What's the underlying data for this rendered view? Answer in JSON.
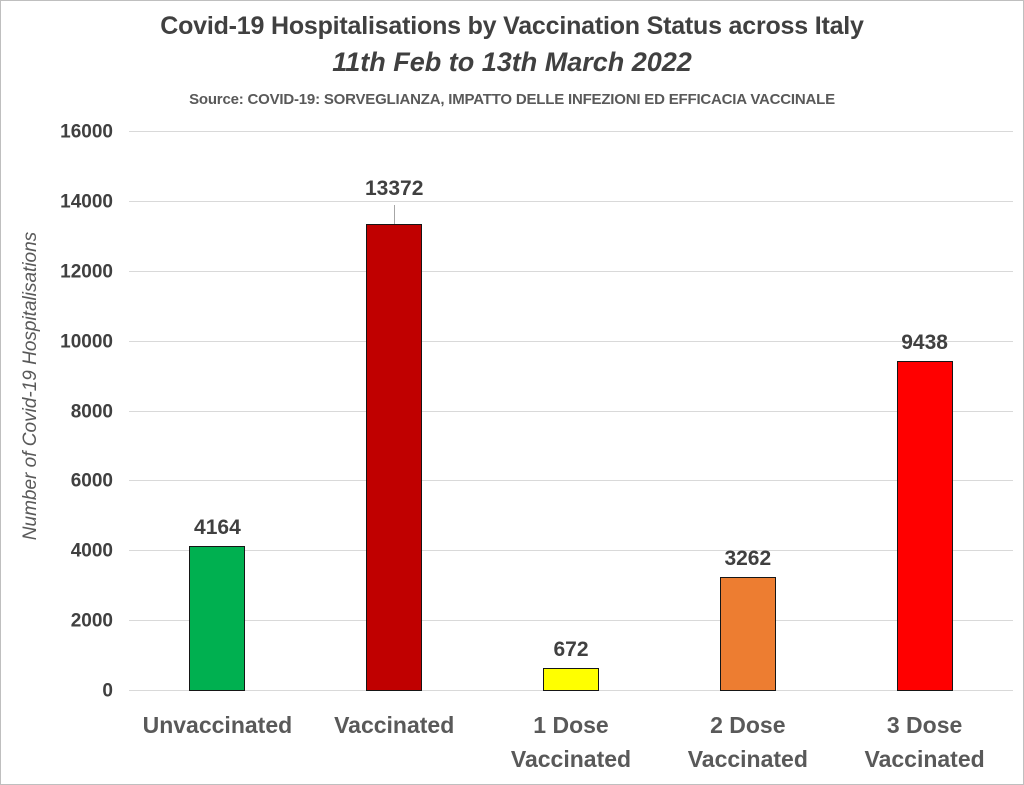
{
  "chart_data": {
    "type": "bar",
    "title": "Covid-19 Hospitalisations by Vaccination Status across Italy",
    "subtitle": "11th Feb to 13th March 2022",
    "source_note": "Source: COVID-19: SORVEGLIANZA, IMPATTO DELLE INFEZIONI ED EFFICACIA VACCINALE",
    "categories": [
      "Unvaccinated",
      "Vaccinated",
      "1 Dose Vaccinated",
      "2 Dose Vaccinated",
      "3 Dose Vaccinated"
    ],
    "values": [
      4164,
      13372,
      672,
      3262,
      9438
    ],
    "bar_colors": [
      "#00B050",
      "#C00000",
      "#FFFF00",
      "#ED7D31",
      "#FF0000"
    ],
    "label_leader_lines": [
      false,
      true,
      false,
      false,
      false
    ],
    "xlabel": "",
    "ylabel": "Number of Covid-19 Hospitalisations",
    "ylim": [
      0,
      16000
    ],
    "yticks": [
      0,
      2000,
      4000,
      6000,
      8000,
      10000,
      12000,
      14000,
      16000
    ],
    "grid": "horizontal-major",
    "gridline_color": "#D9D9D9",
    "legend": "none",
    "data_labels": true,
    "text_colors": {
      "title": "#404040",
      "axis_labels": "#595959",
      "tick_labels": "#404040",
      "value_labels": "#404040"
    }
  }
}
